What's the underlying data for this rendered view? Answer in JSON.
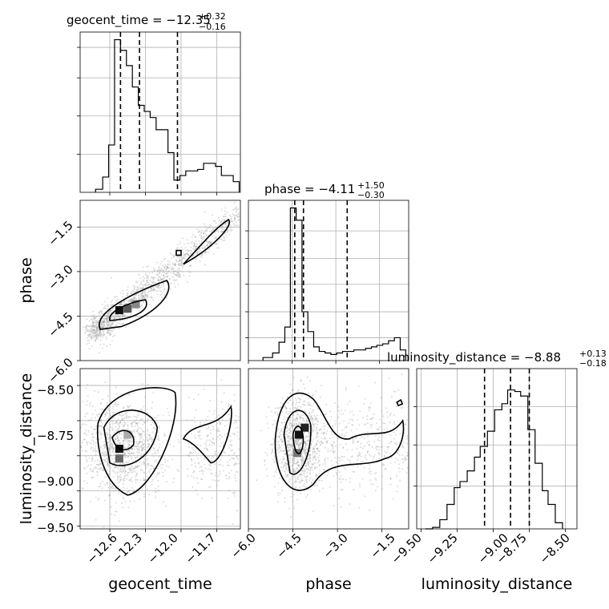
{
  "chart_data": [
    {
      "type": "histogram",
      "panel": "geocent_time-1d",
      "title": {
        "name": "geocent_time",
        "value": "−12.35",
        "plus": "+0.32",
        "minus": "−0.16"
      },
      "xlim": [
        -12.85,
        -11.5
      ],
      "xticks": [
        -12.6,
        -12.3,
        -12.0,
        -11.7
      ],
      "bin_edges": [
        -12.72,
        -12.66,
        -12.61,
        -12.56,
        -12.51,
        -12.46,
        -12.41,
        -12.36,
        -12.31,
        -12.26,
        -12.21,
        -12.16,
        -12.11,
        -12.06,
        -12.01,
        -11.96,
        -11.91,
        -11.86,
        -11.81,
        -11.76,
        -11.71,
        -11.66,
        -11.61,
        -11.56,
        -11.51
      ],
      "counts": [
        0.02,
        0.1,
        0.31,
        1.0,
        0.93,
        0.83,
        0.69,
        0.57,
        0.53,
        0.49,
        0.41,
        0.41,
        0.26,
        0.08,
        0.11,
        0.14,
        0.14,
        0.15,
        0.19,
        0.19,
        0.17,
        0.11,
        0.11,
        0.07
      ],
      "quantile_lines": [
        -12.51,
        -12.35,
        -12.03
      ]
    },
    {
      "type": "histogram",
      "panel": "phase-1d",
      "title": {
        "name": "phase",
        "value": "−4.11",
        "plus": "+1.50",
        "minus": "−0.30"
      },
      "xlim": [
        -6.0,
        -0.5
      ],
      "xticks": [
        -6.0,
        -4.5,
        -3.0,
        -1.5
      ],
      "bin_edges": [
        -5.5,
        -5.17,
        -4.95,
        -4.75,
        -4.56,
        -4.36,
        -4.16,
        -3.96,
        -3.76,
        -3.57,
        -3.37,
        -3.17,
        -2.97,
        -2.77,
        -2.58,
        -2.38,
        -2.18,
        -1.98,
        -1.78,
        -1.59,
        -1.39,
        -1.19,
        -0.99,
        -0.79,
        -0.6
      ],
      "counts": [
        0.02,
        0.05,
        0.12,
        0.22,
        1.0,
        0.92,
        0.32,
        0.19,
        0.09,
        0.06,
        0.05,
        0.04,
        0.05,
        0.06,
        0.06,
        0.07,
        0.07,
        0.08,
        0.09,
        0.1,
        0.11,
        0.13,
        0.15,
        0.07
      ],
      "quantile_lines": [
        -4.41,
        -4.11,
        -2.61
      ]
    },
    {
      "type": "histogram",
      "panel": "luminosity_distance-1d",
      "title": {
        "name": "luminosity_distance",
        "value": "−8.88",
        "plus": "+0.13",
        "minus": "−0.18"
      },
      "xlim": [
        -9.53,
        -8.42
      ],
      "xticks": [
        -9.5,
        -9.25,
        -9.0,
        -8.75,
        -8.5
      ],
      "bin_edges": [
        -9.47,
        -9.42,
        -9.37,
        -9.32,
        -9.27,
        -9.23,
        -9.18,
        -9.13,
        -9.09,
        -9.04,
        -8.99,
        -8.94,
        -8.9,
        -8.85,
        -8.81,
        -8.76,
        -8.71,
        -8.66,
        -8.62,
        -8.57,
        -8.52
      ],
      "counts": [
        0.0,
        0.01,
        0.06,
        0.16,
        0.27,
        0.31,
        0.38,
        0.47,
        0.54,
        0.64,
        0.78,
        0.82,
        0.91,
        0.9,
        0.87,
        0.65,
        0.43,
        0.25,
        0.16,
        0.04
      ],
      "quantile_lines": [
        -9.06,
        -8.88,
        -8.75
      ]
    },
    {
      "type": "scatter-density-contour",
      "panel": "geocent_time-vs-phase",
      "xlim": [
        -12.85,
        -11.5
      ],
      "ylim": [
        -6.0,
        -0.6
      ],
      "yticks": [
        -1.5,
        -3.0,
        -4.5,
        -6.0
      ],
      "ylabel": "phase",
      "density_peak": {
        "x": -12.52,
        "y": -4.3
      },
      "trend": [
        [
          -12.72,
          -5.0
        ],
        [
          -12.55,
          -4.55
        ],
        [
          -12.4,
          -4.2
        ],
        [
          -12.25,
          -3.75
        ],
        [
          -12.05,
          -3.0
        ],
        [
          -11.9,
          -2.4
        ],
        [
          -11.75,
          -1.8
        ],
        [
          -11.55,
          -1.0
        ]
      ]
    },
    {
      "type": "scatter-density-contour",
      "panel": "geocent_time-vs-luminosity_distance",
      "xlim": [
        -12.85,
        -11.5
      ],
      "ylim": [
        -9.52,
        -8.38
      ],
      "yticks": [
        -8.5,
        -8.75,
        -9.0,
        -9.25,
        -9.5
      ],
      "xticks": [
        -12.6,
        -12.3,
        -12.0,
        -11.7
      ],
      "xlabel": "geocent_time",
      "ylabel": "luminosity_distance",
      "density_peak": {
        "x": -12.52,
        "y": -8.95
      }
    },
    {
      "type": "scatter-density-contour",
      "panel": "phase-vs-luminosity_distance",
      "xlim": [
        -6.0,
        -0.6
      ],
      "ylim": [
        -9.52,
        -8.38
      ],
      "xticks": [
        -6.0,
        -4.5,
        -3.0,
        -1.5
      ],
      "xlabel": "phase",
      "density_peak": {
        "x": -4.3,
        "y": -8.85
      }
    }
  ],
  "tick_labels": {
    "geocent_time": [
      "−12.6",
      "−12.3",
      "−12.0",
      "−11.7"
    ],
    "phase_x": [
      "−6.0",
      "−4.5",
      "−3.0",
      "−1.5"
    ],
    "phase_y": [
      "−1.5",
      "−3.0",
      "−4.5",
      "−6.0"
    ],
    "luminosity_distance_x": [
      "−9.50",
      "−9.25",
      "−9.00",
      "−8.75",
      "−8.50"
    ],
    "luminosity_distance_y": [
      "−8.50",
      "−8.75",
      "−9.00",
      "−9.25",
      "−9.50"
    ]
  },
  "axis_labels": {
    "geocent_time": "geocent_time",
    "phase": "phase",
    "luminosity_distance": "luminosity_distance"
  },
  "titles": {
    "geocent_time": {
      "main": "geocent_time = −12.35",
      "sup": "+0.32",
      "sub": "−0.16"
    },
    "phase": {
      "main": "phase = −4.11",
      "sup": "+1.50",
      "sub": "−0.30"
    },
    "luminosity_distance": {
      "main": "luminosity_distance = −8.88",
      "sup": "+0.13",
      "sub": "−0.18"
    }
  }
}
